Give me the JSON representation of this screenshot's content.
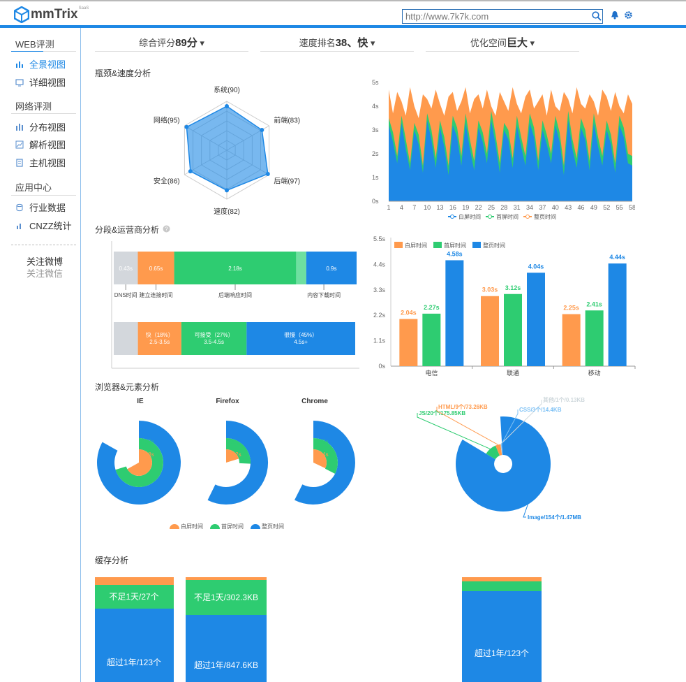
{
  "header": {
    "logo_text": "mmTrix",
    "logo_badge": "SaaS",
    "url_value": "http://www.7k7k.com"
  },
  "sidebar": {
    "web_header": "WEB评测",
    "web_items": [
      "全景视图",
      "详细视图"
    ],
    "net_header": "网络评测",
    "net_items": [
      "分布视图",
      "解析视图",
      "主机视图"
    ],
    "app_header": "应用中心",
    "app_items": [
      "行业数据",
      "CNZZ统计"
    ],
    "follow_weibo": "关注微博",
    "follow_weixin": "关注微信"
  },
  "tabs": [
    {
      "label": "综合评分",
      "value": "89分"
    },
    {
      "label": "速度排名",
      "value": "38、快"
    },
    {
      "label": "优化空间",
      "value": "巨大"
    }
  ],
  "sections": {
    "bottleneck": "瓶颈&速度分析",
    "segment": "分段&运营商分析",
    "browser": "浏览器&元素分析",
    "cache": "缓存分析"
  },
  "radar": {
    "labels": [
      "系统(90)",
      "前端(83)",
      "后端(97)",
      "速度(82)",
      "安全(86)",
      "网络(95)"
    ],
    "values": [
      90,
      83,
      97,
      82,
      86,
      95
    ]
  },
  "area_chart": {
    "y_ticks": [
      "0s",
      "1s",
      "2s",
      "3s",
      "4s",
      "5s"
    ],
    "x_ticks": [
      "1",
      "4",
      "7",
      "10",
      "13",
      "16",
      "19",
      "22",
      "25",
      "28",
      "31",
      "34",
      "37",
      "40",
      "43",
      "46",
      "49",
      "52",
      "55",
      "58"
    ],
    "legend": [
      "白屏时间",
      "首屏时间",
      "整页时间"
    ],
    "colors": {
      "white": "#1e88e5",
      "first": "#2ecc71",
      "full": "#ff9a4d"
    },
    "white": [
      3.2,
      2.5,
      1.6,
      3.3,
      2.2,
      1.3,
      3.0,
      2.4,
      1.2,
      3.4,
      2.6,
      1.4,
      3.1,
      2.3,
      1.1,
      3.2,
      2.7,
      1.5,
      3.3,
      2.2,
      1.3,
      3.1,
      2.5,
      1.6,
      3.4,
      2.4,
      1.2,
      3.0,
      2.6,
      1.4,
      3.2,
      2.3,
      1.5,
      3.3,
      2.7,
      1.3,
      3.0,
      2.4,
      1.6,
      3.2,
      2.5,
      1.1,
      3.4,
      2.2,
      1.4,
      3.1,
      2.6,
      1.3,
      3.3,
      2.3,
      1.5,
      3.0,
      2.4,
      1.2,
      3.2,
      2.7,
      1.6,
      1.5
    ],
    "first": [
      3.5,
      2.9,
      1.9,
      3.6,
      2.6,
      1.6,
      3.3,
      2.8,
      1.5,
      3.7,
      3.0,
      1.8,
      3.4,
      2.7,
      1.5,
      3.6,
      3.1,
      1.9,
      3.7,
      2.6,
      1.7,
      3.4,
      2.9,
      2.0,
      3.8,
      2.8,
      1.6,
      3.3,
      3.0,
      1.8,
      3.6,
      2.7,
      1.9,
      3.7,
      3.1,
      1.7,
      3.4,
      2.8,
      2.0,
      3.6,
      2.9,
      1.5,
      3.8,
      2.6,
      1.8,
      3.5,
      3.0,
      1.7,
      3.7,
      2.7,
      1.9,
      3.4,
      2.8,
      1.6,
      3.6,
      3.1,
      2.0,
      1.9
    ],
    "full": [
      4.7,
      3.7,
      4.6,
      4.2,
      3.6,
      4.8,
      4.0,
      3.5,
      4.5,
      4.3,
      3.9,
      4.7,
      4.1,
      3.6,
      4.4,
      4.6,
      3.8,
      4.2,
      4.8,
      3.7,
      4.3,
      4.5,
      3.9,
      4.7,
      4.0,
      3.6,
      4.6,
      4.2,
      3.8,
      4.8,
      4.1,
      3.7,
      4.4,
      4.7,
      3.9,
      4.2,
      4.5,
      3.6,
      4.7,
      4.0,
      3.8,
      4.6,
      4.3,
      3.7,
      4.8,
      4.1,
      3.9,
      4.5,
      4.2,
      3.6,
      4.7,
      4.4,
      3.8,
      4.6,
      4.0,
      3.7,
      4.5,
      4.1
    ]
  },
  "segment": {
    "bar1": [
      {
        "label": "0.43s",
        "value": 0.43,
        "color": "#d3d7dc"
      },
      {
        "label": "0.65s",
        "value": 0.65,
        "color": "#ff9a4d"
      },
      {
        "label": "2.18s",
        "value": 2.18,
        "color": "#2ecc71"
      },
      {
        "label": "",
        "value": 0.18,
        "color": "#6ee0a0"
      },
      {
        "label": "0.9s",
        "value": 0.9,
        "color": "#1e88e5"
      }
    ],
    "captions": [
      "DNS时间",
      "建立连接时间",
      "后端响应时间",
      "内容下载时间"
    ],
    "bar2": [
      {
        "l1": "",
        "l2": "",
        "pct": 10,
        "color": "#d3d7dc"
      },
      {
        "l1": "快（18%）",
        "l2": "2.5-3.5s",
        "pct": 18,
        "color": "#ff9a4d"
      },
      {
        "l1": "可接受（27%）",
        "l2": "3.5-4.5s",
        "pct": 27,
        "color": "#2ecc71"
      },
      {
        "l1": "很慢（45%）",
        "l2": "4.5s+",
        "pct": 45,
        "color": "#1e88e5"
      }
    ]
  },
  "isp_chart": {
    "y_ticks": [
      "0s",
      "1.1s",
      "2.2s",
      "3.3s",
      "4.4s",
      "5.5s"
    ],
    "ymax": 5.5,
    "legend": [
      "白屏时间",
      "首屏时间",
      "整页时间"
    ],
    "categories": [
      "电信",
      "联通",
      "移动"
    ],
    "series": [
      {
        "name": "白屏时间",
        "values": [
          2.04,
          3.03,
          2.25
        ],
        "labels": [
          "2.04s",
          "3.03s",
          "2.25s"
        ],
        "color": "#ff9a4d"
      },
      {
        "name": "首屏时间",
        "values": [
          2.27,
          3.12,
          2.41
        ],
        "labels": [
          "2.27s",
          "3.12s",
          "2.41s"
        ],
        "color": "#2ecc71"
      },
      {
        "name": "整页时间",
        "values": [
          4.58,
          4.04,
          4.44
        ],
        "labels": [
          "4.58s",
          "4.04s",
          "4.44s"
        ],
        "color": "#1e88e5"
      }
    ]
  },
  "browsers": [
    {
      "name": "IE",
      "full": "5.82s",
      "first": "4.92s",
      "white": "4.68s",
      "full_v": 5.82,
      "first_v": 4.92,
      "white_v": 4.68
    },
    {
      "name": "Firefox",
      "full": "4.01s",
      "first": "1.8s",
      "white": "1.42s",
      "full_v": 4.01,
      "first_v": 1.8,
      "white_v": 1.42
    },
    {
      "name": "Chrome",
      "full": "4.02s",
      "first": "2.28s",
      "white": "2.24s",
      "full_v": 4.02,
      "first_v": 2.28,
      "white_v": 2.24
    }
  ],
  "browser_legend": [
    "白屏时间",
    "首屏时间",
    "整页时间"
  ],
  "elements_pie": {
    "slices": [
      {
        "label": "Image/154个/1.47MB",
        "value": 1470,
        "color": "#1e88e5"
      },
      {
        "label": "JS/20个/175.85KB",
        "value": 176,
        "color": "#2ecc71"
      },
      {
        "label": "HTML/9个/73.26KB",
        "value": 73,
        "color": "#ff9a4d"
      },
      {
        "label": "其他/1个/0.13KB",
        "value": 1,
        "color": "#cfd8dc"
      },
      {
        "label": "CSS/3个/14.4KB",
        "value": 14,
        "color": "#7fc2f5"
      }
    ]
  },
  "cache": {
    "bar1": {
      "top_label": "不足1天/27个",
      "bottom_label": "超过1年/123个"
    },
    "bar2": {
      "top_label": "不足1天/302.3KB",
      "bottom_label": "超过1年/847.6KB"
    },
    "bar3": {
      "bottom_label": "超过1年/123个"
    }
  }
}
